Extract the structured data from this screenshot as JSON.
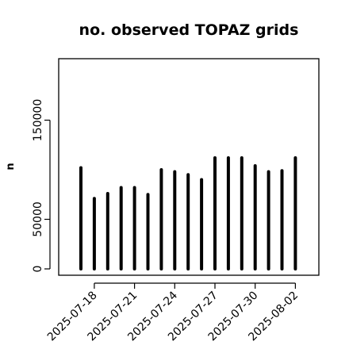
{
  "chart_data": {
    "type": "bar",
    "title": "no. observed TOPAZ grids",
    "xlabel": "",
    "ylabel": "n",
    "ylim": [
      0,
      200000
    ],
    "yticks": [
      0,
      50000,
      150000
    ],
    "y_tick_labels": [
      "0",
      "50000",
      "150000"
    ],
    "x_tick_labels": [
      {
        "label": "2025-07-18",
        "color": "#000000"
      },
      {
        "label": "2025-07-21",
        "color": "#000000"
      },
      {
        "label": "2025-07-24",
        "color": "#228B22"
      },
      {
        "label": "2025-07-27",
        "color": "#000000"
      },
      {
        "label": "2025-07-30",
        "color": "#000000"
      },
      {
        "label": "2025-08-02",
        "color": "#000000"
      }
    ],
    "x_tick_dates": [
      "2025-07-18",
      "2025-07-21",
      "2025-07-24",
      "2025-07-27",
      "2025-07-30",
      "2025-08-02"
    ],
    "x": [
      "2025-07-17",
      "2025-07-18",
      "2025-07-19",
      "2025-07-20",
      "2025-07-21",
      "2025-07-22",
      "2025-07-23",
      "2025-07-24",
      "2025-07-25",
      "2025-07-26",
      "2025-07-27",
      "2025-07-28",
      "2025-07-29",
      "2025-07-30",
      "2025-07-31",
      "2025-08-01",
      "2025-08-02"
    ],
    "values": [
      102000,
      71000,
      76000,
      82000,
      82000,
      75000,
      100000,
      98000,
      95000,
      90000,
      112000,
      112000,
      112000,
      104000,
      98000,
      99000,
      112000
    ],
    "bar_color": "#000000",
    "grid": false,
    "legend": "none"
  }
}
